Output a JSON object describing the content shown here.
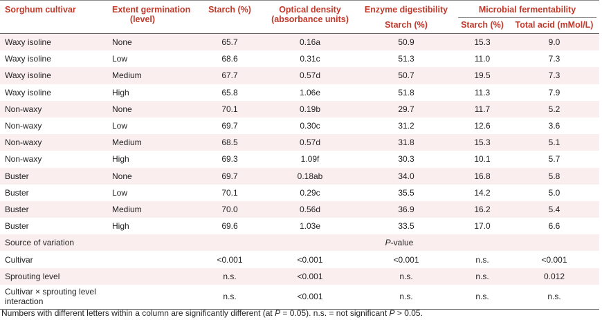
{
  "headers": {
    "cultivar": "Sorghum cultivar",
    "extent_line1": "Extent germination",
    "extent_line2": "(level)",
    "starch": "Starch (%)",
    "od_line1": "Optical density",
    "od_line2": "(absorbance units)",
    "enzyme": "Enzyme digestibility",
    "enzyme_starch": "Starch (%)",
    "microbial": "Microbial fermentability",
    "micro_starch": "Starch (%)",
    "micro_acid": "Total acid (mMol/L)"
  },
  "rows": [
    {
      "cultivar": "Waxy isoline",
      "extent": "None",
      "starch": "65.7",
      "od": "0.16a",
      "enzyme": "50.9",
      "mstarch": "15.3",
      "acid": "9.0"
    },
    {
      "cultivar": "Waxy isoline",
      "extent": "Low",
      "starch": "68.6",
      "od": "0.31c",
      "enzyme": "51.3",
      "mstarch": "11.0",
      "acid": "7.3"
    },
    {
      "cultivar": "Waxy isoline",
      "extent": "Medium",
      "starch": "67.7",
      "od": "0.57d",
      "enzyme": "50.7",
      "mstarch": "19.5",
      "acid": "7.3"
    },
    {
      "cultivar": "Waxy isoline",
      "extent": "High",
      "starch": "65.8",
      "od": "1.06e",
      "enzyme": "51.8",
      "mstarch": "11.3",
      "acid": "7.9"
    },
    {
      "cultivar": "Non-waxy",
      "extent": "None",
      "starch": "70.1",
      "od": "0.19b",
      "enzyme": "29.7",
      "mstarch": "11.7",
      "acid": "5.2"
    },
    {
      "cultivar": "Non-waxy",
      "extent": "Low",
      "starch": "69.7",
      "od": "0.30c",
      "enzyme": "31.2",
      "mstarch": "12.6",
      "acid": "3.6"
    },
    {
      "cultivar": "Non-waxy",
      "extent": "Medium",
      "starch": "68.5",
      "od": "0.57d",
      "enzyme": "31.8",
      "mstarch": "15.3",
      "acid": "5.1"
    },
    {
      "cultivar": "Non-waxy",
      "extent": "High",
      "starch": "69.3",
      "od": "1.09f",
      "enzyme": "30.3",
      "mstarch": "10.1",
      "acid": "5.7"
    },
    {
      "cultivar": "Buster",
      "extent": "None",
      "starch": "69.7",
      "od": "0.18ab",
      "enzyme": "34.0",
      "mstarch": "16.8",
      "acid": "5.8"
    },
    {
      "cultivar": "Buster",
      "extent": "Low",
      "starch": "70.1",
      "od": "0.29c",
      "enzyme": "35.5",
      "mstarch": "14.2",
      "acid": "5.0"
    },
    {
      "cultivar": "Buster",
      "extent": "Medium",
      "starch": "70.0",
      "od": "0.56d",
      "enzyme": "36.9",
      "mstarch": "16.2",
      "acid": "5.4"
    },
    {
      "cultivar": "Buster",
      "extent": "High",
      "starch": "69.6",
      "od": "1.03e",
      "enzyme": "33.5",
      "mstarch": "17.0",
      "acid": "6.6"
    }
  ],
  "variation": {
    "label": "Source of variation",
    "pvalue_italic": "P",
    "pvalue_rest": "-value"
  },
  "stats": [
    {
      "source": "Cultivar",
      "starch": "<0.001",
      "od": "<0.001",
      "enzyme": "<0.001",
      "mstarch": "n.s.",
      "acid": "<0.001"
    },
    {
      "source": "Sprouting level",
      "starch": "n.s.",
      "od": "<0.001",
      "enzyme": "n.s.",
      "mstarch": "n.s.",
      "acid": "0.012"
    },
    {
      "source_line1": "Cultivar × sprouting level",
      "source_line2": "interaction",
      "starch": "n.s.",
      "od": "<0.001",
      "enzyme": "n.s.",
      "mstarch": "n.s.",
      "acid": "n.s."
    }
  ],
  "footnote": {
    "part1": "Numbers with different letters within a column are significantly different (at ",
    "p1": "P",
    "part2": " = 0.05). n.s. = not significant ",
    "p2": "P",
    "part3": " > 0.05."
  }
}
